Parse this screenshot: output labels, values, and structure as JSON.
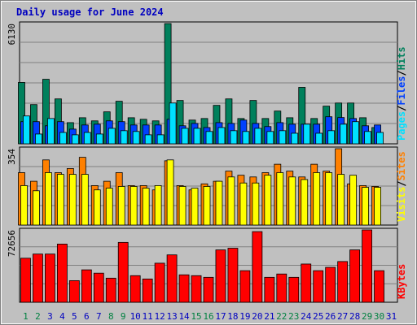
{
  "title": "Daily usage for June 2024",
  "legend_separator": "/",
  "categories": [
    "1",
    "2",
    "3",
    "4",
    "5",
    "6",
    "7",
    "8",
    "9",
    "10",
    "11",
    "12",
    "13",
    "14",
    "15",
    "16",
    "17",
    "18",
    "19",
    "20",
    "21",
    "22",
    "23",
    "24",
    "25",
    "26",
    "27",
    "28",
    "29",
    "30",
    "31"
  ],
  "category_colors": [
    "#008040",
    "#008040",
    "#0000c0",
    "#0000c0",
    "#0000c0",
    "#0000c0",
    "#0000c0",
    "#008040",
    "#008040",
    "#0000c0",
    "#0000c0",
    "#0000c0",
    "#0000c0",
    "#0000c0",
    "#008040",
    "#008040",
    "#0000c0",
    "#0000c0",
    "#0000c0",
    "#0000c0",
    "#0000c0",
    "#008040",
    "#008040",
    "#0000c0",
    "#0000c0",
    "#0000c0",
    "#0000c0",
    "#0000c0",
    "#008040",
    "#008040",
    "#0000c0"
  ],
  "chart_data": [
    {
      "type": "bar",
      "ylim": [
        0,
        6130
      ],
      "yticks": [
        6130
      ],
      "series": [
        {
          "name": "Hits",
          "color": "#00805c",
          "values": [
            3130,
            2000,
            3290,
            2290,
            1080,
            1330,
            1170,
            1630,
            2170,
            1330,
            1250,
            1170,
            6130,
            2210,
            1210,
            1290,
            1960,
            2290,
            1290,
            2210,
            1290,
            1670,
            1330,
            2880,
            1290,
            1920,
            2080,
            2080,
            1330,
            830,
            null
          ]
        },
        {
          "name": "Files",
          "color": "#0040ff",
          "values": [
            1130,
            1130,
            920,
            1130,
            750,
            960,
            1000,
            1170,
            1130,
            960,
            960,
            960,
            1250,
            920,
            1040,
            830,
            1080,
            1040,
            1210,
            1040,
            880,
            1080,
            1000,
            1000,
            1000,
            1380,
            1340,
            1290,
            920,
            960,
            null
          ]
        },
        {
          "name": "Pages",
          "color": "#00e0ff",
          "values": [
            1420,
            500,
            1290,
            580,
            460,
            580,
            500,
            790,
            670,
            630,
            460,
            460,
            2080,
            790,
            790,
            630,
            830,
            670,
            630,
            790,
            630,
            670,
            540,
            1000,
            540,
            670,
            1000,
            1130,
            630,
            580,
            null
          ]
        }
      ]
    },
    {
      "type": "bar",
      "ylim": [
        0,
        354
      ],
      "yticks": [
        354
      ],
      "series": [
        {
          "name": "Sites",
          "color": "#ff8000",
          "values": [
            243,
            203,
            302,
            243,
            262,
            314,
            183,
            203,
            243,
            183,
            183,
            163,
            298,
            183,
            163,
            191,
            203,
            250,
            231,
            223,
            243,
            282,
            250,
            223,
            282,
            250,
            354,
            191,
            183,
            179,
            null
          ]
        },
        {
          "name": "Visits",
          "color": "#ffff00",
          "values": [
            183,
            159,
            243,
            235,
            235,
            235,
            163,
            171,
            179,
            179,
            171,
            183,
            302,
            179,
            171,
            179,
            203,
            223,
            195,
            195,
            231,
            243,
            223,
            211,
            243,
            243,
            235,
            231,
            175,
            175,
            null
          ]
        }
      ]
    },
    {
      "type": "bar",
      "ylim": [
        0,
        72656
      ],
      "yticks": [
        72656
      ],
      "series": [
        {
          "name": "KBytes",
          "color": "#ff0000",
          "values": [
            44260,
            48430,
            48430,
            58460,
            21710,
            32570,
            29230,
            24220,
            60130,
            26720,
            23380,
            39250,
            47600,
            27560,
            26720,
            25050,
            52610,
            54280,
            31730,
            70980,
            25050,
            28390,
            25050,
            38410,
            31730,
            35070,
            40920,
            52610,
            72656,
            31730,
            null
          ]
        }
      ]
    }
  ]
}
